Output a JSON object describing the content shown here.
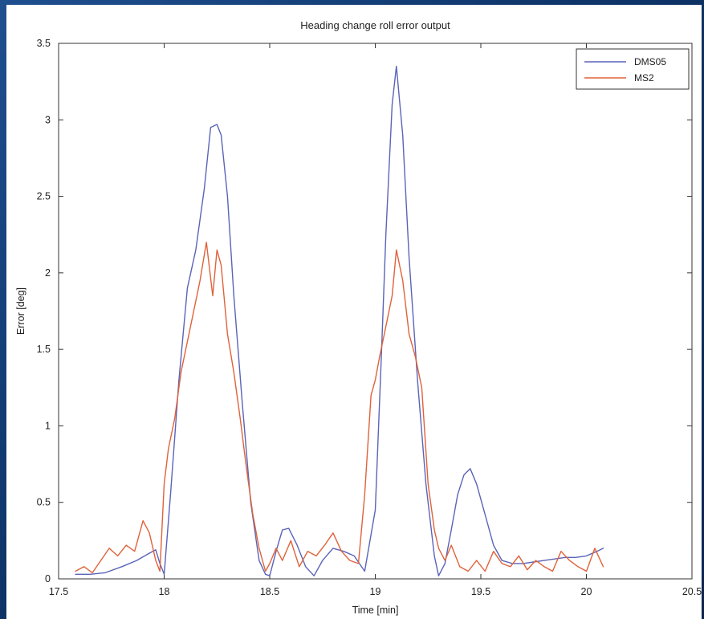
{
  "chart_data": {
    "type": "line",
    "title": "Heading change roll error output",
    "xlabel": "Time [min]",
    "ylabel": "Error [deg]",
    "xlim": [
      17.5,
      20.5
    ],
    "ylim": [
      0,
      3.5
    ],
    "xticks": [
      17.5,
      18,
      18.5,
      19,
      19.5,
      20,
      20.5
    ],
    "xtick_labels": [
      "17.5",
      "18",
      "18.5",
      "19",
      "19.5",
      "20",
      "20.5"
    ],
    "yticks": [
      0,
      0.5,
      1,
      1.5,
      2,
      2.5,
      3,
      3.5
    ],
    "ytick_labels": [
      "0",
      "0.5",
      "1",
      "1.5",
      "2",
      "2.5",
      "3",
      "3.5"
    ],
    "grid": false,
    "legend_position": "top-right",
    "series": [
      {
        "name": "DMS05",
        "color": "#5a64b8",
        "x": [
          17.58,
          17.65,
          17.72,
          17.8,
          17.87,
          17.92,
          17.96,
          17.98,
          18.0,
          18.03,
          18.07,
          18.11,
          18.15,
          18.19,
          18.22,
          18.25,
          18.27,
          18.3,
          18.33,
          18.37,
          18.41,
          18.45,
          18.48,
          18.5,
          18.53,
          18.56,
          18.59,
          18.63,
          18.67,
          18.71,
          18.75,
          18.8,
          18.85,
          18.9,
          18.95,
          19.0,
          19.03,
          19.05,
          19.08,
          19.1,
          19.13,
          19.16,
          19.2,
          19.24,
          19.28,
          19.3,
          19.33,
          19.36,
          19.39,
          19.42,
          19.45,
          19.48,
          19.52,
          19.56,
          19.6,
          19.65,
          19.7,
          19.75,
          19.8,
          19.85,
          19.9,
          19.95,
          20.0,
          20.05,
          20.08
        ],
        "y": [
          0.03,
          0.03,
          0.04,
          0.08,
          0.12,
          0.16,
          0.19,
          0.1,
          0.03,
          0.55,
          1.3,
          1.9,
          2.15,
          2.55,
          2.95,
          2.97,
          2.9,
          2.5,
          1.85,
          1.15,
          0.5,
          0.12,
          0.03,
          0.02,
          0.18,
          0.32,
          0.33,
          0.22,
          0.08,
          0.02,
          0.12,
          0.2,
          0.18,
          0.15,
          0.05,
          0.45,
          1.5,
          2.25,
          3.1,
          3.35,
          2.9,
          2.1,
          1.3,
          0.62,
          0.15,
          0.02,
          0.1,
          0.32,
          0.55,
          0.68,
          0.72,
          0.62,
          0.42,
          0.22,
          0.12,
          0.1,
          0.1,
          0.11,
          0.12,
          0.13,
          0.14,
          0.14,
          0.15,
          0.18,
          0.2
        ]
      },
      {
        "name": "MS2",
        "color": "#e0623a",
        "x": [
          17.58,
          17.62,
          17.66,
          17.7,
          17.74,
          17.78,
          17.82,
          17.86,
          17.9,
          17.93,
          17.96,
          17.98,
          18.0,
          18.02,
          18.05,
          18.08,
          18.11,
          18.14,
          18.17,
          18.2,
          18.23,
          18.25,
          18.27,
          18.3,
          18.33,
          18.36,
          18.39,
          18.42,
          18.45,
          18.48,
          18.5,
          18.53,
          18.56,
          18.6,
          18.64,
          18.68,
          18.72,
          18.76,
          18.8,
          18.84,
          18.88,
          18.92,
          18.95,
          18.98,
          19.0,
          19.02,
          19.05,
          19.08,
          19.1,
          19.13,
          19.16,
          19.19,
          19.22,
          19.25,
          19.28,
          19.3,
          19.33,
          19.36,
          19.4,
          19.44,
          19.48,
          19.52,
          19.56,
          19.6,
          19.64,
          19.68,
          19.72,
          19.76,
          19.8,
          19.84,
          19.88,
          19.92,
          19.96,
          20.0,
          20.04,
          20.08
        ],
        "y": [
          0.05,
          0.08,
          0.04,
          0.12,
          0.2,
          0.15,
          0.22,
          0.18,
          0.38,
          0.3,
          0.12,
          0.05,
          0.62,
          0.85,
          1.05,
          1.35,
          1.55,
          1.75,
          1.95,
          2.2,
          1.85,
          2.15,
          2.05,
          1.6,
          1.35,
          1.05,
          0.72,
          0.42,
          0.2,
          0.05,
          0.1,
          0.2,
          0.12,
          0.25,
          0.08,
          0.18,
          0.15,
          0.22,
          0.3,
          0.18,
          0.12,
          0.1,
          0.55,
          1.2,
          1.3,
          1.45,
          1.65,
          1.85,
          2.15,
          1.95,
          1.6,
          1.45,
          1.25,
          0.62,
          0.32,
          0.2,
          0.12,
          0.22,
          0.08,
          0.05,
          0.12,
          0.05,
          0.18,
          0.1,
          0.08,
          0.15,
          0.06,
          0.12,
          0.08,
          0.05,
          0.18,
          0.12,
          0.08,
          0.05,
          0.2,
          0.08
        ]
      }
    ]
  }
}
